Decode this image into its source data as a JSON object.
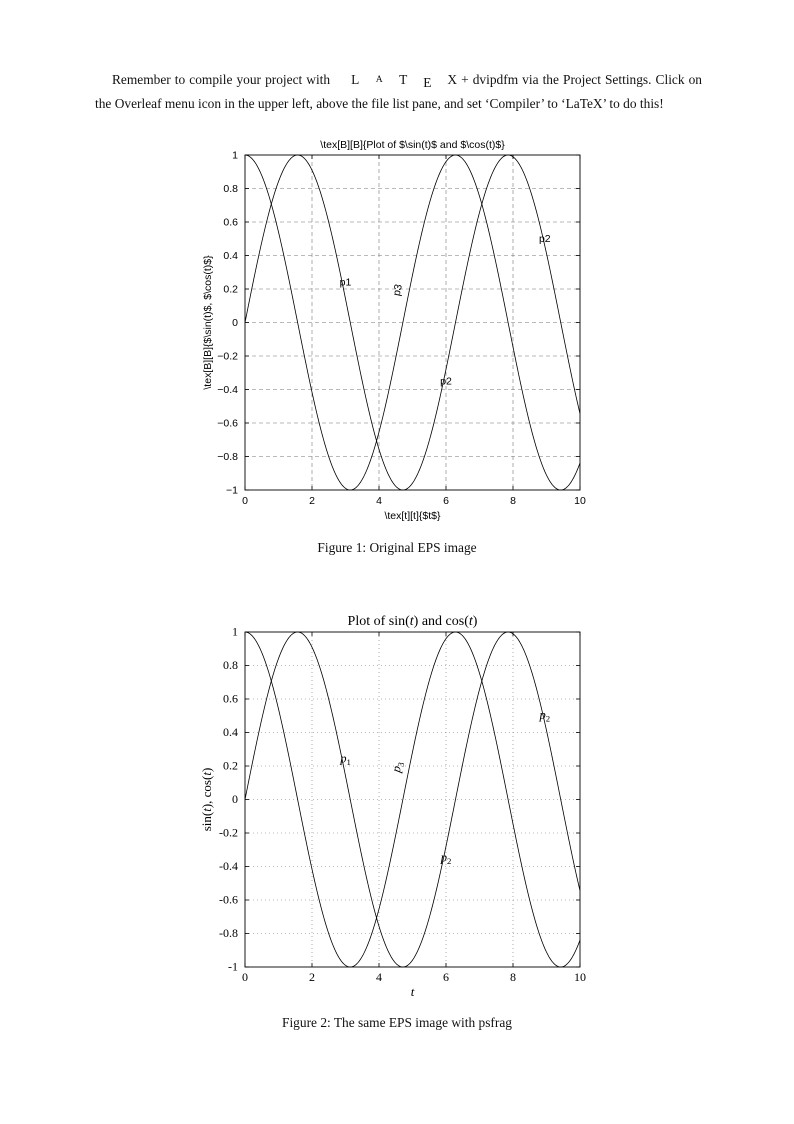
{
  "page": {
    "intro": {
      "pre": "Remember to compile your project with ",
      "latex_logo": {
        "l": "L",
        "a": "A",
        "t": "T",
        "e": "E",
        "x": "X"
      },
      "post": " + dvipdfm via the Project Settings. Click on the Overleaf menu icon in the upper left, above the file list pane, and set ‘Compiler’ to ‘LaTeX’ to do this!"
    },
    "figure1_caption": "Figure 1: Original EPS image",
    "figure2_caption": "Figure 2: The same EPS image with psfrag"
  },
  "chart_data": [
    {
      "type": "line",
      "font": "sans",
      "title_runs": [
        {
          "t": "\\tex[B][B]{Plot of $\\sin(t)$ and $\\cos(t)$}"
        }
      ],
      "xlabel_runs": [
        {
          "t": "\\tex[t][t]{$t$}"
        }
      ],
      "ylabel_runs": [
        {
          "t": "\\tex[B][B]{$\\sin(t)$, $\\cos(t)$}"
        }
      ],
      "xlim": [
        0,
        10
      ],
      "ylim": [
        -1,
        1
      ],
      "xticks": [
        0,
        2,
        4,
        6,
        8,
        10
      ],
      "xtick_labels": [
        "0",
        "2",
        "4",
        "6",
        "8",
        "10"
      ],
      "yticks": [
        -1,
        -0.8,
        -0.6,
        -0.4,
        -0.2,
        0,
        0.2,
        0.4,
        0.6,
        0.8,
        1
      ],
      "ytick_labels": [
        "−1",
        "−0.8",
        "−0.6",
        "−0.4",
        "−0.2",
        "0",
        "0.2",
        "0.4",
        "0.6",
        "0.8",
        "1"
      ],
      "grid": true,
      "grid_dash": "4 3",
      "legend": "none",
      "series": [
        {
          "name": "sin(t)",
          "fn": "sin"
        },
        {
          "name": "cos(t)",
          "fn": "cos"
        }
      ],
      "samples_t": [
        0,
        1,
        2,
        3,
        4,
        5,
        6,
        7,
        8,
        9,
        10
      ],
      "sin_values": [
        0,
        0.841,
        0.909,
        0.141,
        -0.757,
        -0.959,
        -0.279,
        0.657,
        0.989,
        0.412,
        -0.544
      ],
      "cos_values": [
        1,
        0.54,
        -0.416,
        -0.99,
        -0.654,
        0.284,
        0.96,
        0.754,
        -0.146,
        -0.911,
        -0.839
      ],
      "annotations": [
        {
          "runs": [
            {
              "t": "p1"
            }
          ],
          "x": 3.0,
          "y": 0.22,
          "rotate": 0
        },
        {
          "runs": [
            {
              "t": "p3"
            }
          ],
          "x": 4.65,
          "y": 0.19,
          "rotate": -78
        },
        {
          "runs": [
            {
              "t": "p2"
            }
          ],
          "x": 6.0,
          "y": -0.37,
          "rotate": 0
        },
        {
          "runs": [
            {
              "t": "p2"
            }
          ],
          "x": 8.95,
          "y": 0.48,
          "rotate": 0
        }
      ]
    },
    {
      "type": "line",
      "font": "serif",
      "title_runs": [
        {
          "t": "Plot of sin("
        },
        {
          "t": "t",
          "i": true
        },
        {
          "t": ") and cos("
        },
        {
          "t": "t",
          "i": true
        },
        {
          "t": ")"
        }
      ],
      "xlabel_runs": [
        {
          "t": "t",
          "i": true
        }
      ],
      "ylabel_runs": [
        {
          "t": "sin("
        },
        {
          "t": "t",
          "i": true
        },
        {
          "t": "), cos("
        },
        {
          "t": "t",
          "i": true
        },
        {
          "t": ")"
        }
      ],
      "xlim": [
        0,
        10
      ],
      "ylim": [
        -1,
        1
      ],
      "xticks": [
        0,
        2,
        4,
        6,
        8,
        10
      ],
      "xtick_labels": [
        "0",
        "2",
        "4",
        "6",
        "8",
        "10"
      ],
      "yticks": [
        -1,
        -0.8,
        -0.6,
        -0.4,
        -0.2,
        0,
        0.2,
        0.4,
        0.6,
        0.8,
        1
      ],
      "ytick_labels": [
        "-1",
        "-0.8",
        "-0.6",
        "-0.4",
        "-0.2",
        "0",
        "0.2",
        "0.4",
        "0.6",
        "0.8",
        "1"
      ],
      "grid": true,
      "grid_dash": "1 3",
      "legend": "none",
      "series": [
        {
          "name": "sin(t)",
          "fn": "sin"
        },
        {
          "name": "cos(t)",
          "fn": "cos"
        }
      ],
      "samples_t": [
        0,
        1,
        2,
        3,
        4,
        5,
        6,
        7,
        8,
        9,
        10
      ],
      "sin_values": [
        0,
        0.841,
        0.909,
        0.141,
        -0.757,
        -0.959,
        -0.279,
        0.657,
        0.989,
        0.412,
        -0.544
      ],
      "cos_values": [
        1,
        0.54,
        -0.416,
        -0.99,
        -0.654,
        0.284,
        0.96,
        0.754,
        -0.146,
        -0.911,
        -0.839
      ],
      "annotations": [
        {
          "runs": [
            {
              "t": "p",
              "i": true
            },
            {
              "t": "1",
              "sub": true
            }
          ],
          "x": 3.0,
          "y": 0.22,
          "rotate": 0
        },
        {
          "runs": [
            {
              "t": "p",
              "i": true
            },
            {
              "t": "3",
              "sub": true
            }
          ],
          "x": 4.65,
          "y": 0.19,
          "rotate": -78
        },
        {
          "runs": [
            {
              "t": "p",
              "i": true
            },
            {
              "t": "2",
              "sub": true
            }
          ],
          "x": 6.0,
          "y": -0.37,
          "rotate": 0
        },
        {
          "runs": [
            {
              "t": "p",
              "i": true
            },
            {
              "t": "2",
              "sub": true
            }
          ],
          "x": 8.95,
          "y": 0.48,
          "rotate": 0
        }
      ]
    }
  ]
}
